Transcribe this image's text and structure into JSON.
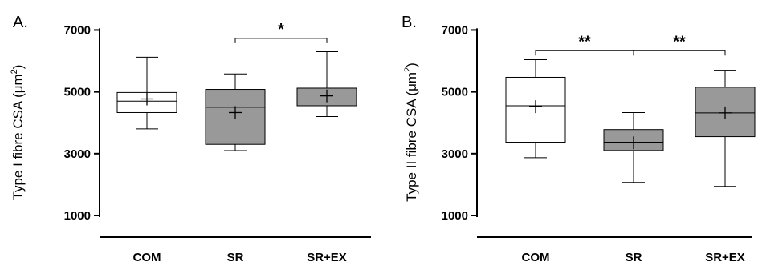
{
  "chart_data": [
    {
      "type": "box",
      "panel_label": "A.",
      "title": "",
      "ylabel": "Type I fibre CSA (μm",
      "ylabel_sup": "2",
      "ylabel_close": ")",
      "xlabel": "",
      "ylim": [
        300,
        7400
      ],
      "yticks": [
        1000,
        3000,
        5000,
        7000
      ],
      "ytick_labels": [
        "1000",
        "3000",
        "5000",
        "7000"
      ],
      "grid": false,
      "categories": [
        "COM",
        "SR",
        "SR+EX"
      ],
      "boxes": [
        {
          "category": "COM",
          "min": 3800,
          "q1": 4330,
          "median": 4700,
          "q3": 4980,
          "max": 6120,
          "mean": 4770,
          "fill": "#ffffff"
        },
        {
          "category": "SR",
          "min": 3100,
          "q1": 3300,
          "median": 4500,
          "q3": 5080,
          "max": 5580,
          "mean": 4330,
          "fill": "#999999"
        },
        {
          "category": "SR+EX",
          "min": 4200,
          "q1": 4550,
          "median": 4770,
          "q3": 5120,
          "max": 6300,
          "mean": 4870,
          "fill": "#999999"
        }
      ],
      "significance": [
        {
          "from": 1,
          "to": 2,
          "y": 6730,
          "label": "*"
        }
      ]
    },
    {
      "type": "box",
      "panel_label": "B.",
      "title": "",
      "ylabel": "Type II fibre CSA (μm",
      "ylabel_sup": "2",
      "ylabel_close": ")",
      "xlabel": "",
      "ylim": [
        300,
        7400
      ],
      "yticks": [
        1000,
        3000,
        5000,
        7000
      ],
      "ytick_labels": [
        "1000",
        "3000",
        "5000",
        "7000"
      ],
      "grid": false,
      "categories": [
        "COM",
        "SR",
        "SR+EX"
      ],
      "boxes": [
        {
          "category": "COM",
          "min": 2870,
          "q1": 3370,
          "median": 4550,
          "q3": 5470,
          "max": 6040,
          "mean": 4520,
          "fill": "#ffffff"
        },
        {
          "category": "SR",
          "min": 2070,
          "q1": 3100,
          "median": 3370,
          "q3": 3780,
          "max": 4330,
          "mean": 3350,
          "fill": "#999999"
        },
        {
          "category": "SR+EX",
          "min": 1940,
          "q1": 3550,
          "median": 4320,
          "q3": 5150,
          "max": 5700,
          "mean": 4320,
          "fill": "#999999"
        }
      ],
      "significance": [
        {
          "from": 0,
          "to": 1,
          "y": 6330,
          "label": "**"
        },
        {
          "from": 1,
          "to": 2,
          "y": 6330,
          "label": "**"
        }
      ]
    }
  ]
}
